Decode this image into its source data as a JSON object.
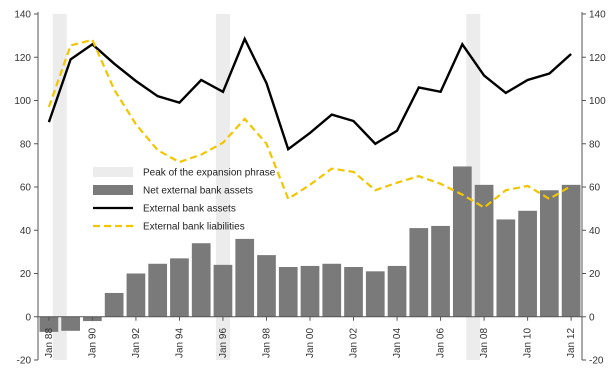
{
  "chart_data": {
    "type": "bar",
    "x_labels": [
      "Jan 88",
      "Jan 90",
      "Jan 92",
      "Jan 94",
      "Jan 96",
      "Jan 98",
      "Jan 00",
      "Jan 02",
      "Jan 04",
      "Jan 06",
      "Jan 08",
      "Jan 10",
      "Jan 12"
    ],
    "x_years": [
      1988,
      1989,
      1990,
      1991,
      1992,
      1993,
      1994,
      1995,
      1996,
      1997,
      1998,
      1999,
      2000,
      2001,
      2002,
      2003,
      2004,
      2005,
      2006,
      2007,
      2008,
      2009,
      2010,
      2011,
      2012
    ],
    "ylim": [
      -20,
      140
    ],
    "yticks": [
      -20,
      0,
      20,
      40,
      60,
      80,
      100,
      120,
      140
    ],
    "grid": false,
    "legend_position": "center-left",
    "series": [
      {
        "name": "Net external bank assets",
        "type": "bar",
        "color": "#7a7a7a",
        "values": [
          -7,
          -6.5,
          -2,
          11,
          20,
          24.5,
          27,
          34,
          24,
          36,
          28.5,
          23,
          23.5,
          24.5,
          23,
          21,
          23.5,
          41,
          42,
          69.5,
          61,
          45,
          49,
          58.5,
          61
        ]
      },
      {
        "name": "External bank assets",
        "type": "line",
        "color": "#000000",
        "values": [
          90,
          119,
          126,
          117,
          109,
          102,
          99,
          109.5,
          104,
          128.5,
          108,
          77.5,
          85,
          93.5,
          90.5,
          80,
          86,
          106,
          104,
          126,
          111.5,
          103.5,
          109.5,
          112.5,
          121.5
        ]
      },
      {
        "name": "External bank liabilities",
        "type": "line",
        "color": "#f2c500",
        "dashed": true,
        "values": [
          97,
          125.5,
          128,
          105,
          89,
          77,
          71.5,
          75,
          80.5,
          91.5,
          80,
          54.5,
          61,
          68.5,
          67,
          58.5,
          62,
          65,
          61.5,
          56.5,
          50.5,
          58.5,
          60.5,
          54.5,
          60.5
        ]
      },
      {
        "name": "Peak of the expansion phrase",
        "type": "shade",
        "color": "#ececec",
        "peaks": [
          1988.5,
          1996,
          2007.5
        ]
      }
    ]
  }
}
